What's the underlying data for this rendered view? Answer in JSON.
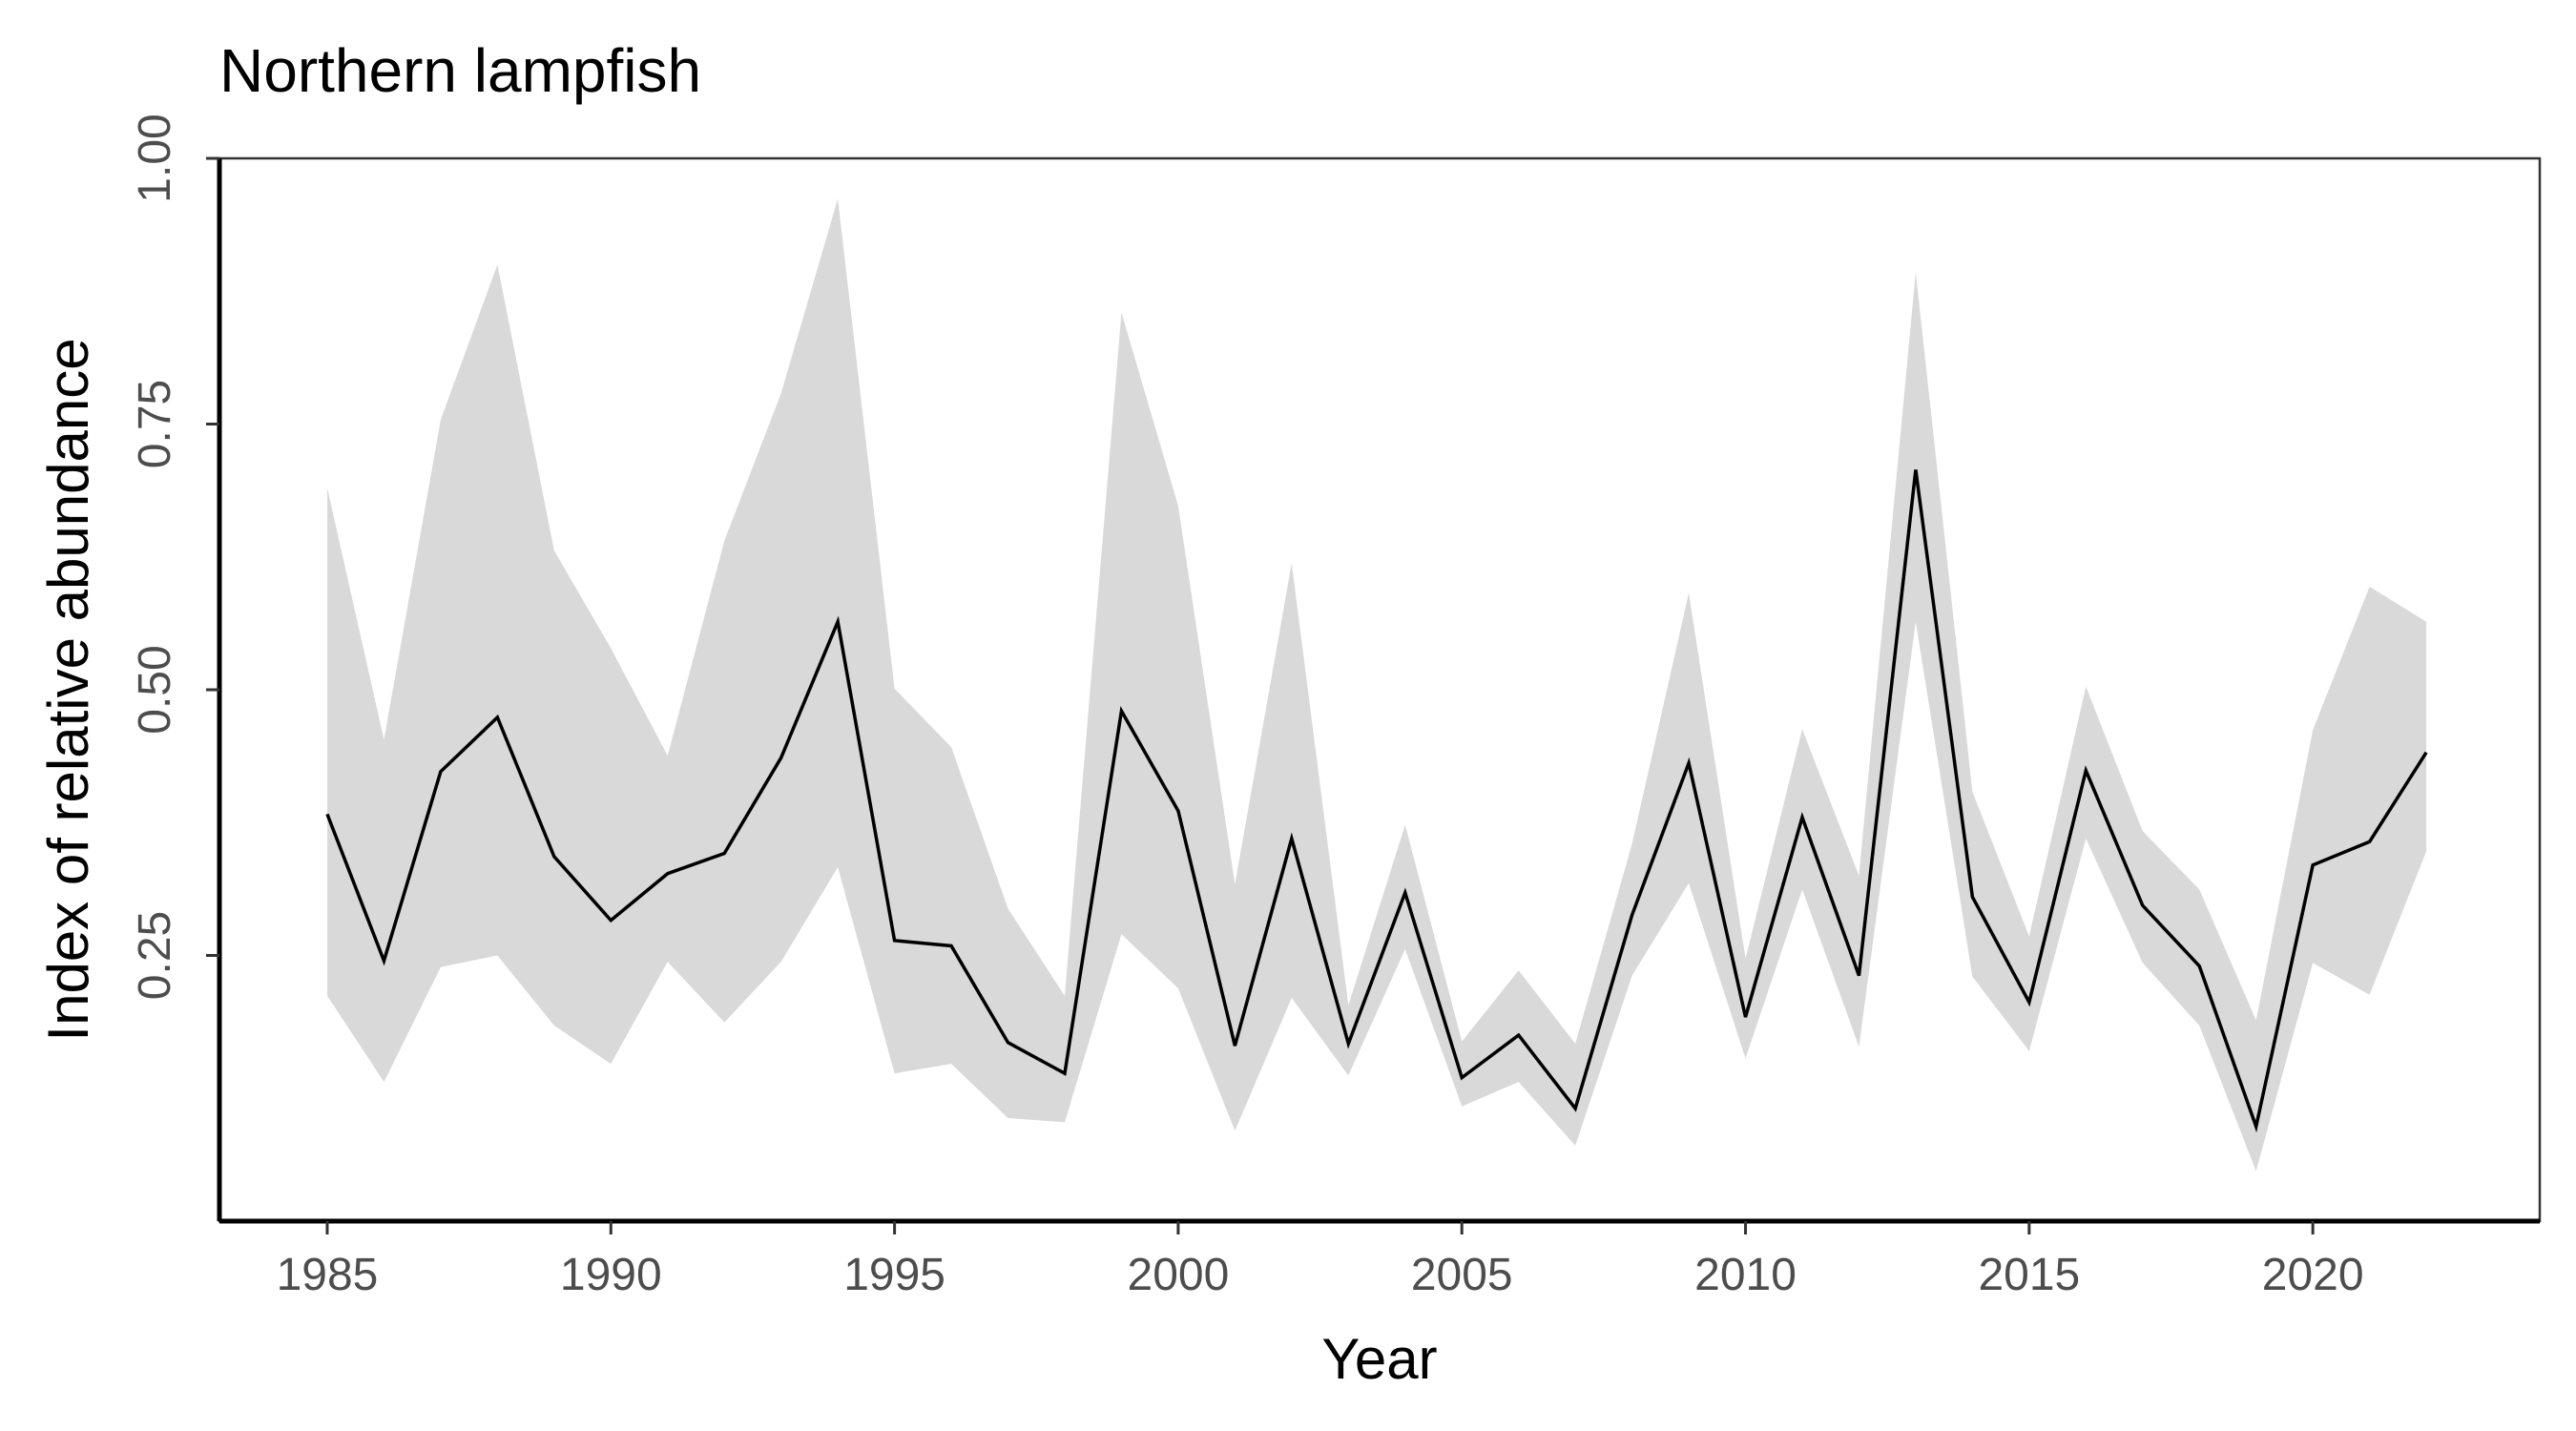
{
  "chart_data": {
    "type": "line",
    "title": "Northern lampfish",
    "xlabel": "Year",
    "ylabel": "Index of relative abundance",
    "xlim": [
      1983.1,
      2024.0
    ],
    "ylim": [
      0.0,
      1.0
    ],
    "x_ticks": [
      1985,
      1990,
      1995,
      2000,
      2005,
      2010,
      2015,
      2020
    ],
    "x_tick_labels": [
      "1985",
      "1990",
      "1995",
      "2000",
      "2005",
      "2010",
      "2015",
      "2020"
    ],
    "y_ticks": [
      0.25,
      0.5,
      0.75,
      1.0
    ],
    "y_tick_labels": [
      "0.25",
      "0.50",
      "0.75",
      "1.00"
    ],
    "grid": false,
    "legend": "none",
    "colors": {
      "line": "#000000",
      "ribbon": "#d9d9d9",
      "panel_border": "#333333",
      "axis": "#000000",
      "tick_label": "#4d4d4d"
    },
    "x": [
      1985,
      1986,
      1987,
      1988,
      1989,
      1990,
      1991,
      1992,
      1993,
      1994,
      1995,
      1996,
      1997,
      1998,
      1999,
      2000,
      2001,
      2002,
      2003,
      2004,
      2005,
      2006,
      2007,
      2008,
      2009,
      2010,
      2011,
      2012,
      2013,
      2014,
      2015,
      2016,
      2017,
      2018,
      2019,
      2020,
      2021,
      2022
    ],
    "series": [
      {
        "values": [
          0.383,
          0.245,
          0.423,
          0.474,
          0.343,
          0.283,
          0.327,
          0.346,
          0.436,
          0.564,
          0.264,
          0.259,
          0.168,
          0.139,
          0.48,
          0.386,
          0.165,
          0.36,
          0.167,
          0.309,
          0.135,
          0.175,
          0.106,
          0.288,
          0.431,
          0.192,
          0.38,
          0.231,
          0.707,
          0.305,
          0.206,
          0.424,
          0.297,
          0.24,
          0.089,
          0.335,
          0.357,
          0.441
        ],
        "lower": [
          0.212,
          0.131,
          0.239,
          0.25,
          0.184,
          0.148,
          0.244,
          0.187,
          0.244,
          0.333,
          0.139,
          0.148,
          0.097,
          0.093,
          0.27,
          0.219,
          0.085,
          0.21,
          0.137,
          0.256,
          0.108,
          0.131,
          0.071,
          0.231,
          0.318,
          0.153,
          0.312,
          0.164,
          0.564,
          0.23,
          0.16,
          0.36,
          0.243,
          0.184,
          0.047,
          0.243,
          0.213,
          0.348
        ],
        "upper": [
          0.69,
          0.453,
          0.754,
          0.9,
          0.631,
          0.539,
          0.438,
          0.64,
          0.779,
          0.962,
          0.501,
          0.446,
          0.294,
          0.212,
          0.855,
          0.673,
          0.317,
          0.619,
          0.203,
          0.373,
          0.169,
          0.236,
          0.167,
          0.355,
          0.591,
          0.247,
          0.463,
          0.325,
          0.893,
          0.404,
          0.268,
          0.503,
          0.367,
          0.312,
          0.189,
          0.462,
          0.597,
          0.564
        ]
      }
    ]
  }
}
